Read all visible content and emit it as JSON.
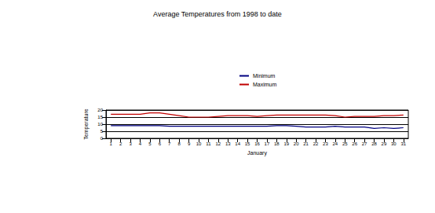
{
  "chart_data": {
    "type": "line",
    "title": "Average Temperatures from 1998 to date",
    "x_label": "January",
    "y_label": "Temperature",
    "categories": [
      "1",
      "2",
      "3",
      "4",
      "5",
      "6",
      "7",
      "8",
      "9",
      "10",
      "11",
      "12",
      "13",
      "14",
      "15",
      "16",
      "17",
      "18",
      "19",
      "20",
      "21",
      "22",
      "23",
      "24",
      "25",
      "26",
      "27",
      "28",
      "29",
      "30",
      "31"
    ],
    "series": [
      {
        "name": "Minimum",
        "color": "#000080",
        "values": [
          9,
          9,
          9,
          9,
          9,
          9,
          8.5,
          8.5,
          8.5,
          8.5,
          8.5,
          8.5,
          8.5,
          8.5,
          8.5,
          8.5,
          8.5,
          9,
          9,
          8.5,
          8,
          8,
          8,
          8.5,
          8,
          8,
          8,
          7,
          7.5,
          7,
          7.5
        ]
      },
      {
        "name": "Maximum",
        "color": "#c00000",
        "values": [
          17,
          17,
          17,
          17,
          18,
          18,
          17,
          16,
          15,
          15,
          15,
          15.5,
          16,
          16,
          16,
          15.5,
          16,
          16.5,
          16.5,
          16.5,
          16.5,
          16.5,
          16.5,
          16,
          15,
          15.5,
          15.5,
          15.5,
          16,
          16,
          16.5
        ]
      }
    ],
    "ylim": [
      0,
      20
    ],
    "yticks": [
      0,
      5,
      10,
      15,
      20
    ],
    "grid": true,
    "legend": "top"
  }
}
